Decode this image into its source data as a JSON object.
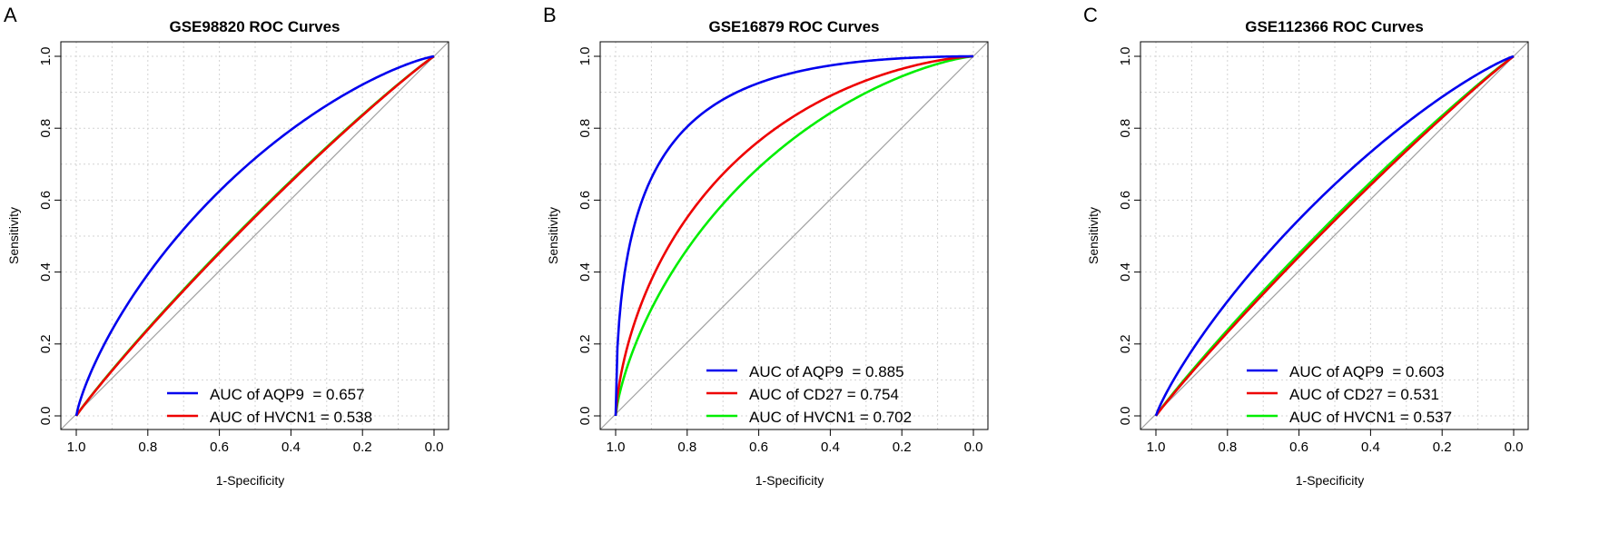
{
  "figure": {
    "panels": [
      {
        "letter": "A"
      },
      {
        "letter": "B"
      },
      {
        "letter": "C"
      }
    ]
  },
  "colors": {
    "blue": "#0000ee",
    "red": "#ee0000",
    "green": "#00ee00",
    "diagonal": "#a0a0a0",
    "grid": "#d3d3d3"
  },
  "chart_data": [
    {
      "type": "line",
      "title": "GSE98820 ROC Curves",
      "xlabel": "1-Specificity",
      "ylabel": "Sensitivity",
      "xlim": [
        1.0,
        0.0
      ],
      "ylim": [
        0.0,
        1.0
      ],
      "x_ticks": [
        "1.0",
        "0.8",
        "0.6",
        "0.4",
        "0.2",
        "0.0"
      ],
      "y_ticks": [
        "0.0",
        "0.2",
        "0.4",
        "0.6",
        "0.8",
        "1.0"
      ],
      "grid": true,
      "legend_position": "bottom-right",
      "series": [
        {
          "name": "AUC of AQP9  = 0.657",
          "gene": "AQP9",
          "auc": 0.657,
          "color": "blue"
        },
        {
          "name": "AUC of HVCN1 = 0.538",
          "gene": "HVCN1",
          "auc": 0.538,
          "color": "red"
        }
      ],
      "unlisted_curves": [
        {
          "auc": 0.54,
          "color": "green"
        }
      ]
    },
    {
      "type": "line",
      "title": "GSE16879 ROC Curves",
      "xlabel": "1-Specificity",
      "ylabel": "Sensitivity",
      "xlim": [
        1.0,
        0.0
      ],
      "ylim": [
        0.0,
        1.0
      ],
      "x_ticks": [
        "1.0",
        "0.8",
        "0.6",
        "0.4",
        "0.2",
        "0.0"
      ],
      "y_ticks": [
        "0.0",
        "0.2",
        "0.4",
        "0.6",
        "0.8",
        "1.0"
      ],
      "grid": true,
      "legend_position": "bottom-right",
      "series": [
        {
          "name": "AUC of AQP9  = 0.885",
          "gene": "AQP9",
          "auc": 0.885,
          "color": "blue"
        },
        {
          "name": "AUC of CD27 = 0.754",
          "gene": "CD27",
          "auc": 0.754,
          "color": "red"
        },
        {
          "name": "AUC of HVCN1 = 0.702",
          "gene": "HVCN1",
          "auc": 0.702,
          "color": "green"
        }
      ]
    },
    {
      "type": "line",
      "title": "GSE112366 ROC Curves",
      "xlabel": "1-Specificity",
      "ylabel": "Sensitivity",
      "xlim": [
        1.0,
        0.0
      ],
      "ylim": [
        0.0,
        1.0
      ],
      "x_ticks": [
        "1.0",
        "0.8",
        "0.6",
        "0.4",
        "0.2",
        "0.0"
      ],
      "y_ticks": [
        "0.0",
        "0.2",
        "0.4",
        "0.6",
        "0.8",
        "1.0"
      ],
      "grid": true,
      "legend_position": "bottom-right",
      "series": [
        {
          "name": "AUC of AQP9  = 0.603",
          "gene": "AQP9",
          "auc": 0.603,
          "color": "blue"
        },
        {
          "name": "AUC of CD27 = 0.531",
          "gene": "CD27",
          "auc": 0.531,
          "color": "red"
        },
        {
          "name": "AUC of HVCN1 = 0.537",
          "gene": "HVCN1",
          "auc": 0.537,
          "color": "green"
        }
      ]
    }
  ]
}
